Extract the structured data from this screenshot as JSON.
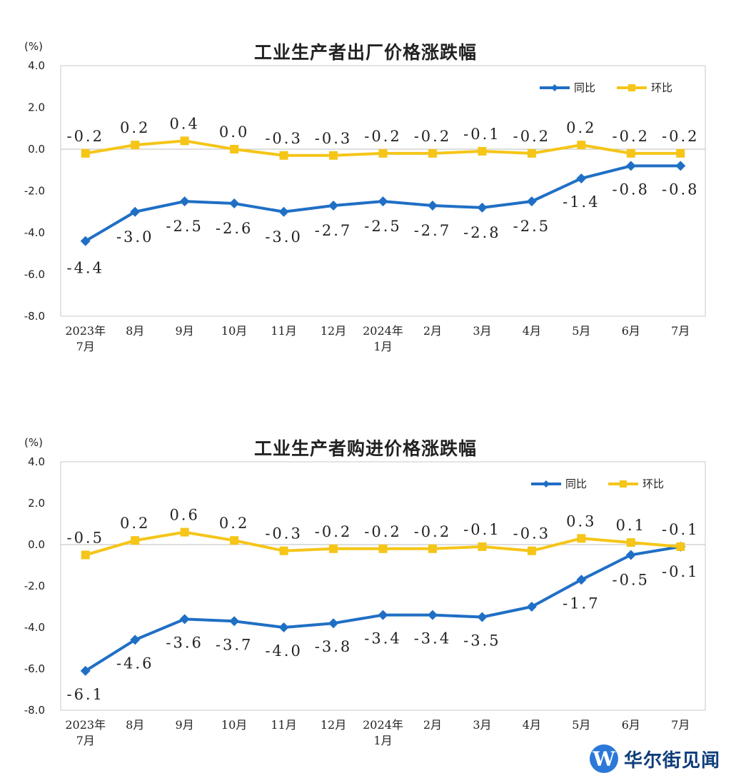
{
  "chart_data": [
    {
      "type": "line",
      "title": "工业生产者出厂价格涨跌幅",
      "unit_label": "(%)",
      "ylim": [
        -8.0,
        4.0
      ],
      "yticks": [
        "4.0",
        "2.0",
        "0.0",
        "-2.0",
        "-4.0",
        "-6.0",
        "-8.0"
      ],
      "ytick_values": [
        4,
        2,
        0,
        -2,
        -4,
        -6,
        -8
      ],
      "categories": [
        [
          "2023年",
          "7月"
        ],
        [
          "8月"
        ],
        [
          "9月"
        ],
        [
          "10月"
        ],
        [
          "11月"
        ],
        [
          "12月"
        ],
        [
          "2024年",
          "1月"
        ],
        [
          "2月"
        ],
        [
          "3月"
        ],
        [
          "4月"
        ],
        [
          "5月"
        ],
        [
          "6月"
        ],
        [
          "7月"
        ]
      ],
      "series": [
        {
          "name": "同比",
          "color": "#1f6fc5",
          "marker": "diamond",
          "values": [
            -4.4,
            -3.0,
            -2.5,
            -2.6,
            -3.0,
            -2.7,
            -2.5,
            -2.7,
            -2.8,
            -2.5,
            -1.4,
            -0.8,
            -0.8
          ],
          "labels": [
            "-4.4",
            "-3.0",
            "-2.5",
            "-2.6",
            "-3.0",
            "-2.7",
            "-2.5",
            "-2.7",
            "-2.8",
            "-2.5",
            "-1.4",
            "-0.8",
            "-0.8"
          ]
        },
        {
          "name": "环比",
          "color": "#f5c518",
          "marker": "square",
          "values": [
            -0.2,
            0.2,
            0.4,
            0.0,
            -0.3,
            -0.3,
            -0.2,
            -0.2,
            -0.1,
            -0.2,
            0.2,
            -0.2,
            -0.2
          ],
          "labels": [
            "-0.2",
            "0.2",
            "0.4",
            "0.0",
            "-0.3",
            "-0.3",
            "-0.2",
            "-0.2",
            "-0.1",
            "-0.2",
            "0.2",
            "-0.2",
            "-0.2"
          ]
        }
      ],
      "legend": [
        "同比",
        "环比"
      ],
      "legend_position": "top-right"
    },
    {
      "type": "line",
      "title": "工业生产者购进价格涨跌幅",
      "unit_label": "(%)",
      "ylim": [
        -8.0,
        4.0
      ],
      "yticks": [
        "4.0",
        "2.0",
        "0.0",
        "-2.0",
        "-4.0",
        "-6.0",
        "-8.0"
      ],
      "ytick_values": [
        4,
        2,
        0,
        -2,
        -4,
        -6,
        -8
      ],
      "categories": [
        [
          "2023年",
          "7月"
        ],
        [
          "8月"
        ],
        [
          "9月"
        ],
        [
          "10月"
        ],
        [
          "11月"
        ],
        [
          "12月"
        ],
        [
          "2024年",
          "1月"
        ],
        [
          "2月"
        ],
        [
          "3月"
        ],
        [
          "4月"
        ],
        [
          "5月"
        ],
        [
          "6月"
        ],
        [
          "7月"
        ]
      ],
      "series": [
        {
          "name": "同比",
          "color": "#1f6fc5",
          "marker": "diamond",
          "values": [
            -6.1,
            -4.6,
            -3.6,
            -3.7,
            -4.0,
            -3.8,
            -3.4,
            -3.4,
            -3.5,
            -3.0,
            -1.7,
            -0.5,
            -0.1
          ],
          "labels": [
            "-6.1",
            "-4.6",
            "-3.6",
            "-3.7",
            "-4.0",
            "-3.8",
            "-3.4",
            "-3.4",
            "-3.5",
            "",
            "-1.7",
            "-0.5",
            "-0.1"
          ]
        },
        {
          "name": "环比",
          "color": "#f5c518",
          "marker": "square",
          "values": [
            -0.5,
            0.2,
            0.6,
            0.2,
            -0.3,
            -0.2,
            -0.2,
            -0.2,
            -0.1,
            -0.3,
            0.3,
            0.1,
            -0.1
          ],
          "labels": [
            "-0.5",
            "0.2",
            "0.6",
            "0.2",
            "-0.3",
            "-0.2",
            "-0.2",
            "-0.2",
            "-0.1",
            "-0.3",
            "0.3",
            "0.1",
            "-0.1"
          ]
        }
      ],
      "legend": [
        "同比",
        "环比"
      ],
      "legend_position": "top-right"
    }
  ],
  "watermark": {
    "logo": "W",
    "text": "华尔街见闻"
  }
}
